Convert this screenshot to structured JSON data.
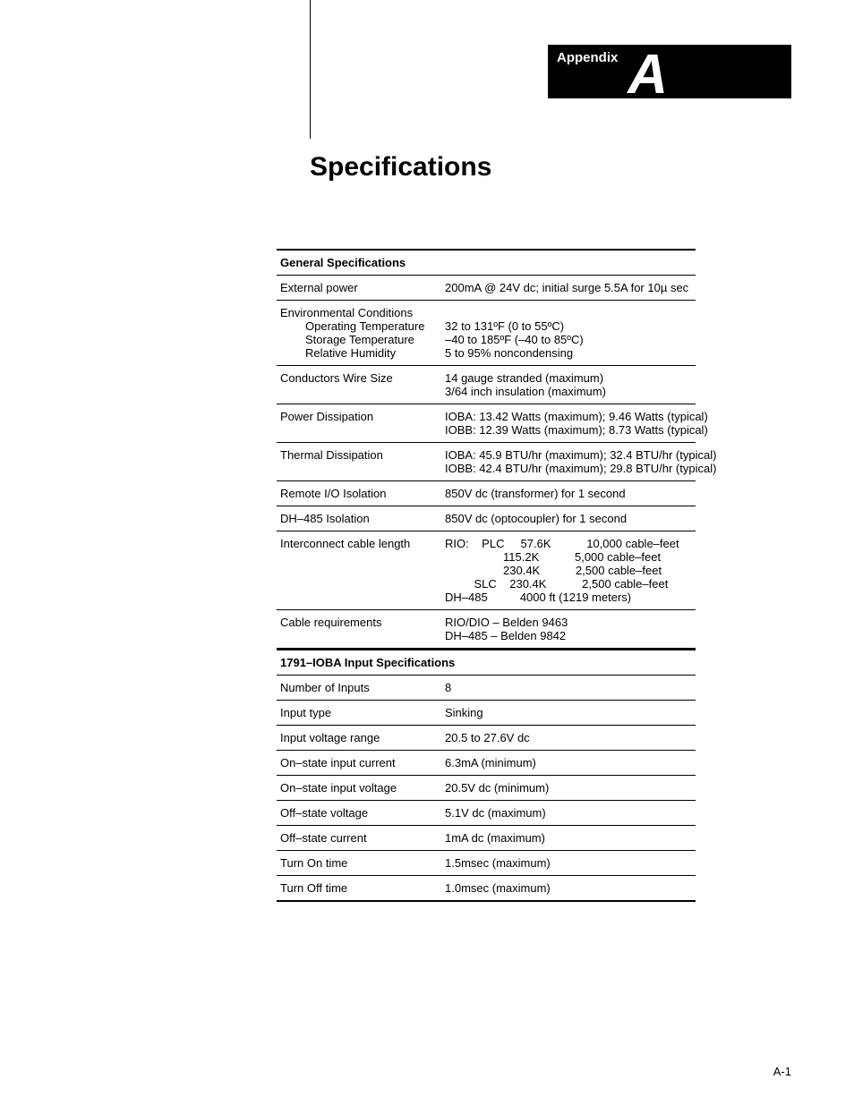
{
  "header": {
    "appendix_label": "Appendix",
    "appendix_letter": "A"
  },
  "title": "Specifications",
  "sections": [
    {
      "title": "General Specifications",
      "rows": [
        {
          "label": "External power",
          "value": "200mA @ 24V dc; initial surge 5.5A for 10µ sec"
        },
        {
          "label": "Environmental Conditions",
          "sublabels": [
            "Operating Temperature",
            "Storage Temperature",
            "Relative Humidity"
          ],
          "value": "\n32 to 131ºF (0 to 55ºC)\n–40 to 185ºF (–40 to 85ºC)\n5 to 95% noncondensing"
        },
        {
          "label": "Conductors    Wire Size",
          "value": "14 gauge stranded (maximum)\n3/64 inch insulation (maximum)"
        },
        {
          "label": "Power Dissipation",
          "value": "IOBA: 13.42 Watts (maximum); 9.46 Watts (typical)\nIOBB: 12.39 Watts (maximum); 8.73 Watts (typical)"
        },
        {
          "label": "Thermal Dissipation",
          "value": "IOBA: 45.9 BTU/hr (maximum); 32.4 BTU/hr (typical)\nIOBB: 42.4 BTU/hr (maximum); 29.8 BTU/hr (typical)"
        },
        {
          "label": "Remote I/O Isolation",
          "value": "850V dc (transformer) for 1 second"
        },
        {
          "label": "DH–485 Isolation",
          "value": "850V dc (optocoupler) for 1 second"
        },
        {
          "label": "Interconnect cable length",
          "value": "RIO:    PLC     57.6K           10,000 cable–feet\n                  115.2K           5,000 cable–feet\n                  230.4K           2,500 cable–feet\n         SLC    230.4K           2,500 cable–feet\nDH–485          4000 ft (1219 meters)"
        },
        {
          "label": "Cable requirements",
          "value": "RIO/DIO – Belden 9463\nDH–485 – Belden 9842"
        }
      ]
    },
    {
      "title": "1791–IOBA Input Specifications",
      "rows": [
        {
          "label": "Number of Inputs",
          "value": "8"
        },
        {
          "label": "Input type",
          "value": "Sinking"
        },
        {
          "label": "Input voltage range",
          "value": "20.5 to 27.6V dc"
        },
        {
          "label": "On–state input current",
          "value": "6.3mA (minimum)"
        },
        {
          "label": "On–state input voltage",
          "value": "20.5V dc (minimum)"
        },
        {
          "label": "Off–state voltage",
          "value": "5.1V dc (maximum)"
        },
        {
          "label": "Off–state current",
          "value": "1mA dc (maximum)"
        },
        {
          "label": "Turn On time",
          "value": "1.5msec (maximum)"
        },
        {
          "label": "Turn Off time",
          "value": "1.0msec (maximum)"
        }
      ]
    }
  ],
  "page_number": "A-1",
  "colors": {
    "text": "#000000",
    "bg": "#ffffff"
  },
  "fonts": {
    "title_size": 30,
    "body_size": 13,
    "header_size": 13
  }
}
